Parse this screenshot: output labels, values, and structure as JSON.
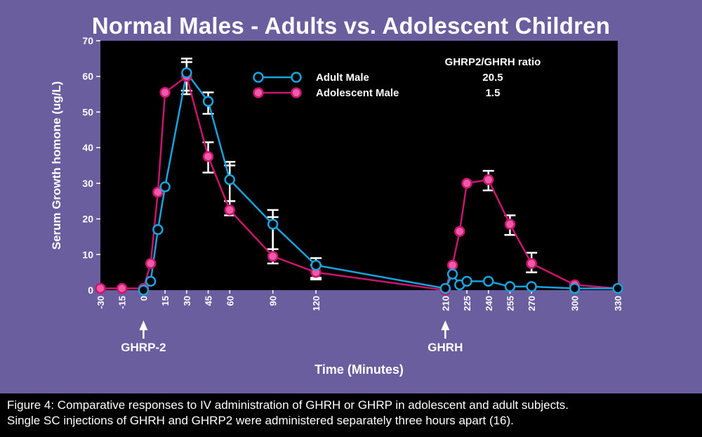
{
  "title": "Normal Males - Adults vs. Adolescent Children",
  "caption": {
    "line1": "Figure 4: Comparative responses to IV administration of GHRH or GHRP in adolescent and adult subjects.",
    "line2": "Single SC injections of GHRH and GHRP2 were administered separately three hours apart (16)."
  },
  "chart_data": {
    "type": "line",
    "title": "Normal Males - Adults vs. Adolescent Children",
    "xlabel": "Time (Minutes)",
    "ylabel": "Serum Growth homone (ug/L)",
    "xlim": [
      -30,
      330
    ],
    "ylim": [
      0,
      70
    ],
    "xticks": [
      -30,
      -15,
      0,
      15,
      30,
      45,
      60,
      90,
      120,
      210,
      225,
      240,
      255,
      270,
      300,
      330
    ],
    "yticks": [
      0,
      10,
      20,
      30,
      40,
      50,
      60,
      70
    ],
    "colors": {
      "background": "#6a5e9e",
      "plot": "#000000",
      "adult": "#1aa3dc",
      "adolescent": "#c8166e",
      "adolescent_marker": "#f05aa8"
    },
    "legend": {
      "position": "top-center",
      "ratio_header": "GHRP2/GHRH ratio",
      "entries": [
        {
          "label": "Adult Male",
          "ratio": "20.5"
        },
        {
          "label": "Adolescent Male",
          "ratio": "1.5"
        }
      ]
    },
    "annotations": [
      {
        "text": "GHRP-2",
        "x": 0
      },
      {
        "text": "GHRH",
        "x": 210
      }
    ],
    "series": [
      {
        "name": "Adult Male",
        "x": [
          0,
          5,
          10,
          15,
          30,
          45,
          60,
          90,
          120,
          210,
          215,
          220,
          225,
          240,
          255,
          270,
          300,
          330
        ],
        "y": [
          0,
          2.5,
          17,
          29,
          61,
          53,
          31,
          18.5,
          7,
          0.5,
          4.5,
          1.5,
          2.5,
          2.5,
          1,
          1,
          0.5,
          0.5
        ],
        "errors": [
          {
            "x": 30,
            "low": 55,
            "high": 65
          },
          {
            "x": 45,
            "low": 49.5,
            "high": 55.5
          },
          {
            "x": 60,
            "low": 25,
            "high": 36
          },
          {
            "x": 90,
            "low": 11.5,
            "high": 22.5
          },
          {
            "x": 120,
            "low": 3.5,
            "high": 9
          }
        ]
      },
      {
        "name": "Adolescent Male",
        "x": [
          -30,
          -15,
          0,
          5,
          10,
          15,
          30,
          45,
          60,
          90,
          120,
          210,
          215,
          220,
          225,
          240,
          255,
          270,
          300,
          330
        ],
        "y": [
          0.5,
          0.5,
          0.5,
          7.5,
          27.5,
          55.5,
          60,
          37.5,
          22.5,
          9.5,
          5,
          0,
          7,
          16.5,
          30,
          31,
          18.5,
          7.5,
          1.5,
          0.5
        ],
        "errors": [
          {
            "x": 30,
            "low": 56,
            "high": 64
          },
          {
            "x": 45,
            "low": 33,
            "high": 41.5
          },
          {
            "x": 60,
            "low": 21,
            "high": 35
          },
          {
            "x": 90,
            "low": 7.5,
            "high": 20.5
          },
          {
            "x": 120,
            "low": 3,
            "high": 7
          },
          {
            "x": 240,
            "low": 28,
            "high": 33.5
          },
          {
            "x": 255,
            "low": 15.5,
            "high": 21
          },
          {
            "x": 270,
            "low": 5,
            "high": 10.5
          }
        ]
      }
    ]
  }
}
